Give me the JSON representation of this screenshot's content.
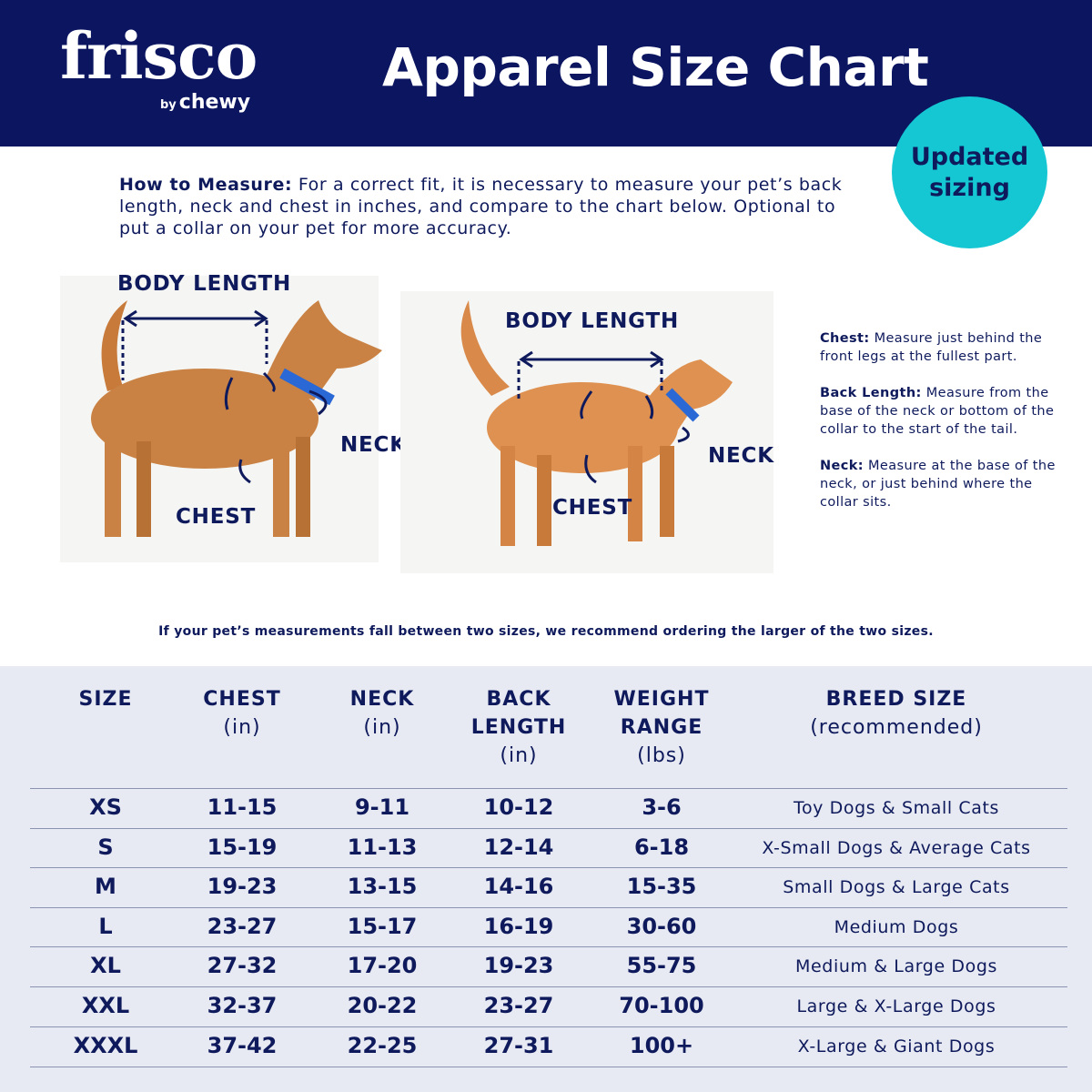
{
  "header": {
    "logo": "frisco",
    "logo_by": "by",
    "logo_brand": "chewy",
    "title": "Apparel Size Chart",
    "bg_color": "#0b1560"
  },
  "badge": {
    "text": "Updated sizing",
    "color": "#14c7d3"
  },
  "how_to": {
    "label": "How to Measure:",
    "text": " For a correct fit, it is necessary to measure your pet’s back length, neck and chest in inches, and compare to the chart below. Optional to put a collar on your pet for more accuracy."
  },
  "dog": {
    "body_length": "BODY LENGTH",
    "neck": "NECK",
    "chest": "CHEST"
  },
  "cat": {
    "body_length": "BODY LENGTH",
    "neck": "NECK",
    "chest": "CHEST"
  },
  "notes": [
    {
      "label": "Chest:",
      "text": " Measure just behind the front legs at the fullest part."
    },
    {
      "label": "Back Length:",
      "text": " Measure from the base of the neck or bottom of the collar to the start of the tail."
    },
    {
      "label": "Neck:",
      "text": " Measure at the base of the neck, or just behind where the collar sits."
    }
  ],
  "tip": "If your pet’s measurements fall between two sizes, we recommend ordering the larger of the two sizes.",
  "table": {
    "headers": [
      {
        "title": "SIZE",
        "unit": ""
      },
      {
        "title": "CHEST",
        "unit": "(in)"
      },
      {
        "title": "NECK",
        "unit": "(in)"
      },
      {
        "title": "BACK\nLENGTH",
        "unit": "(in)"
      },
      {
        "title": "WEIGHT\nRANGE",
        "unit": "(lbs)"
      },
      {
        "title": "BREED SIZE",
        "unit": "(recommended)"
      }
    ],
    "rows": [
      [
        "XS",
        "11-15",
        "9-11",
        "10-12",
        "3-6",
        "Toy Dogs & Small Cats"
      ],
      [
        "S",
        "15-19",
        "11-13",
        "12-14",
        "6-18",
        "X-Small Dogs & Average Cats"
      ],
      [
        "M",
        "19-23",
        "13-15",
        "14-16",
        "15-35",
        "Small Dogs & Large Cats"
      ],
      [
        "L",
        "23-27",
        "15-17",
        "16-19",
        "30-60",
        "Medium Dogs"
      ],
      [
        "XL",
        "27-32",
        "17-20",
        "19-23",
        "55-75",
        "Medium & Large Dogs"
      ],
      [
        "XXL",
        "32-37",
        "20-22",
        "23-27",
        "70-100",
        "Large & X-Large Dogs"
      ],
      [
        "XXXL",
        "37-42",
        "22-25",
        "27-31",
        "100+",
        "X-Large & Giant Dogs"
      ]
    ]
  }
}
